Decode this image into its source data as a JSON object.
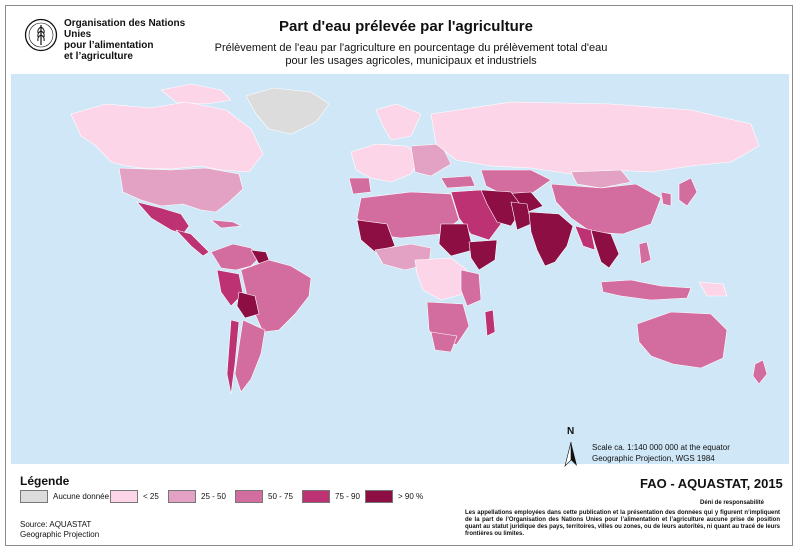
{
  "header": {
    "organization": [
      "Organisation des Nations Unies",
      "pour l’alimentation",
      "et l’agriculture"
    ],
    "logo_icon": "fao-logo-icon",
    "title": "Part d'eau prélevée par l'agriculture",
    "subtitle_line1": "Prélèvement de l'eau par l'agriculture en pourcentage du prélèvement total d'eau",
    "subtitle_line2": "pour les usages agricoles, municipaux et industriels"
  },
  "map": {
    "ocean_color": "#cfe7f7",
    "scale_line1": "Scale ca. 1:140 000 000 at the equator",
    "scale_line2": "Geographic Projection, WGS 1984",
    "north_label": "N",
    "north_icon": "north-arrow-icon"
  },
  "legend": {
    "title": "Légende",
    "items": [
      {
        "label": "Aucune donnée",
        "color": "#dcdcdc"
      },
      {
        "label": "< 25",
        "color": "#fcd5e8"
      },
      {
        "label": "25 - 50",
        "color": "#e3a2c3"
      },
      {
        "label": "50 - 75",
        "color": "#d36d9f"
      },
      {
        "label": "75 - 90",
        "color": "#bd3272"
      },
      {
        "label": "> 90 %",
        "color": "#8c0e43"
      }
    ]
  },
  "source": {
    "line1": "Source: AQUASTAT",
    "line2": "Geographic Projection"
  },
  "credit": "FAO - AQUASTAT, 2015",
  "disclaimer": {
    "title": "Déni de responsabilité",
    "text": "Les appellations employées dans cette publication et la présentation des données qui y figurent n’impliquent de la part de l’Organisation des Nations Unies pour l’alimentation et l’agriculture aucune prise de position quant au statut juridique des pays, territoires, villes ou zones, ou de leurs autorités, ni quant au tracé de leurs frontières ou limites."
  }
}
